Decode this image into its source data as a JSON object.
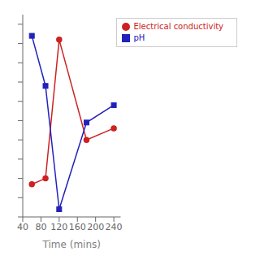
{
  "chart_data": {
    "type": "line",
    "x_label": "Time (mins)",
    "x": [
      60,
      90,
      120,
      180,
      240
    ],
    "series": [
      {
        "name": "Electrical conductivity",
        "color": "#cc2222",
        "marker": "circle",
        "values": [
          0.17,
          0.2,
          0.92,
          0.4,
          0.46
        ]
      },
      {
        "name": "pH",
        "color": "#2222bb",
        "marker": "square",
        "values": [
          0.94,
          0.68,
          0.04,
          0.49,
          0.58
        ]
      }
    ],
    "xlim": [
      40,
      255
    ],
    "xticks": [
      40,
      80,
      120,
      160,
      200,
      240
    ],
    "ylim": [
      0,
      1.05
    ],
    "yticks": [
      0,
      0.1,
      0.2,
      0.3,
      0.4,
      0.5,
      0.6,
      0.7,
      0.8,
      0.9,
      1
    ],
    "tick_labels": "x",
    "grid": false,
    "legend": "upper right"
  }
}
